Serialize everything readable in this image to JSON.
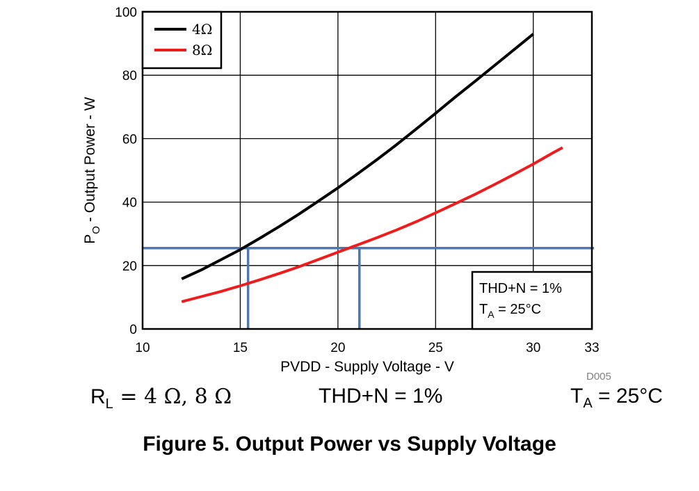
{
  "chart_data": {
    "type": "line",
    "ylabel_main": "P",
    "ylabel_sub": "O",
    "ylabel_rest": " - Output Power - W",
    "xlabel": "PVDD - Supply Voltage - V",
    "xlim": [
      10,
      33
    ],
    "ylim": [
      0,
      100
    ],
    "x_ticks": [
      10,
      15,
      20,
      25,
      30,
      33
    ],
    "y_ticks": [
      0,
      20,
      40,
      60,
      80,
      100
    ],
    "grid": true,
    "legend_position": "top-left",
    "series": [
      {
        "name": "4Ω",
        "color": "#000000",
        "x": [
          12,
          13,
          14,
          15,
          16,
          17,
          18,
          19,
          20,
          21,
          22,
          23,
          24,
          25,
          26,
          27,
          28,
          29,
          30
        ],
        "y": [
          15.8,
          18.6,
          21.8,
          25.0,
          28.6,
          32.3,
          36.2,
          40.3,
          44.5,
          48.9,
          53.4,
          58.1,
          63.0,
          68.0,
          73.1,
          78.0,
          83.0,
          88.0,
          93.0
        ]
      },
      {
        "name": "8Ω",
        "color": "#ee1c1c",
        "x": [
          12,
          13,
          14,
          15,
          16,
          17,
          18,
          19,
          20,
          21,
          22,
          23,
          24,
          25,
          26,
          27,
          28,
          29,
          30,
          31,
          31.5
        ],
        "y": [
          8.6,
          10.2,
          11.8,
          13.6,
          15.5,
          17.5,
          19.6,
          21.9,
          24.2,
          26.5,
          28.8,
          31.2,
          33.8,
          36.6,
          39.5,
          42.4,
          45.5,
          48.7,
          52.0,
          55.5,
          57.2
        ]
      }
    ],
    "reference_lines": {
      "color": "#4a78b5",
      "horizontal_y": 25.5,
      "vertical_x": [
        15.4,
        21.1
      ]
    },
    "annotation_box": {
      "line1": "THD+N = 1%",
      "line2_main": "T",
      "line2_sub": "A",
      "line2_rest": " = 25°C"
    },
    "code": "D005"
  },
  "conditions": {
    "load_main": "R",
    "load_sub": "L",
    "load_rest": " = 4 Ω, 8 Ω",
    "thd": "THD+N = 1%",
    "temp_main": "T",
    "temp_sub": "A",
    "temp_rest": " = 25°C"
  },
  "caption": "Figure 5. Output Power vs Supply Voltage"
}
